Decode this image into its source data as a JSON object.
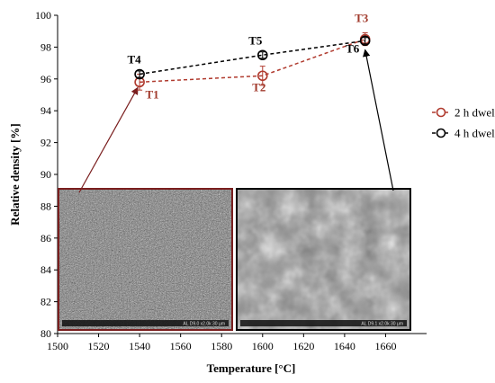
{
  "chart_data": {
    "type": "line",
    "xlabel": "Temperature [°C]",
    "ylabel": "Relative density [%]",
    "xlim": [
      1500,
      1680
    ],
    "ylim": [
      80,
      100
    ],
    "xticks": [
      1500,
      1520,
      1540,
      1560,
      1580,
      1600,
      1620,
      1640,
      1660
    ],
    "yticks": [
      80,
      82,
      84,
      86,
      88,
      90,
      92,
      94,
      96,
      98,
      100
    ],
    "legend_position": "right",
    "series": [
      {
        "name": "2 h dwell",
        "color": "#b03a2e",
        "dash": "dashed",
        "marker": "open-circle",
        "points": [
          {
            "x": 1540,
            "y": 95.8,
            "err": 0.5,
            "label": "T1"
          },
          {
            "x": 1600,
            "y": 96.2,
            "err": 0.6,
            "label": "T2"
          },
          {
            "x": 1650,
            "y": 98.5,
            "err": 0.4,
            "label": "T3"
          }
        ]
      },
      {
        "name": "4 h dwell",
        "color": "#000000",
        "dash": "dashed",
        "marker": "open-circle",
        "points": [
          {
            "x": 1540,
            "y": 96.3,
            "err": 0.2,
            "label": "T4"
          },
          {
            "x": 1600,
            "y": 97.5,
            "err": 0.2,
            "label": "T5"
          },
          {
            "x": 1650,
            "y": 98.4,
            "err": 0.2,
            "label": "T6"
          }
        ]
      }
    ],
    "insets": [
      {
        "border_color": "#7a1e1e",
        "points_to": "T1",
        "caption": "AL   D9.0  x2.0k   30 µm"
      },
      {
        "border_color": "#000000",
        "points_to": "T6",
        "caption": "AL   D9.1  x2.0k   30 µm"
      }
    ]
  }
}
